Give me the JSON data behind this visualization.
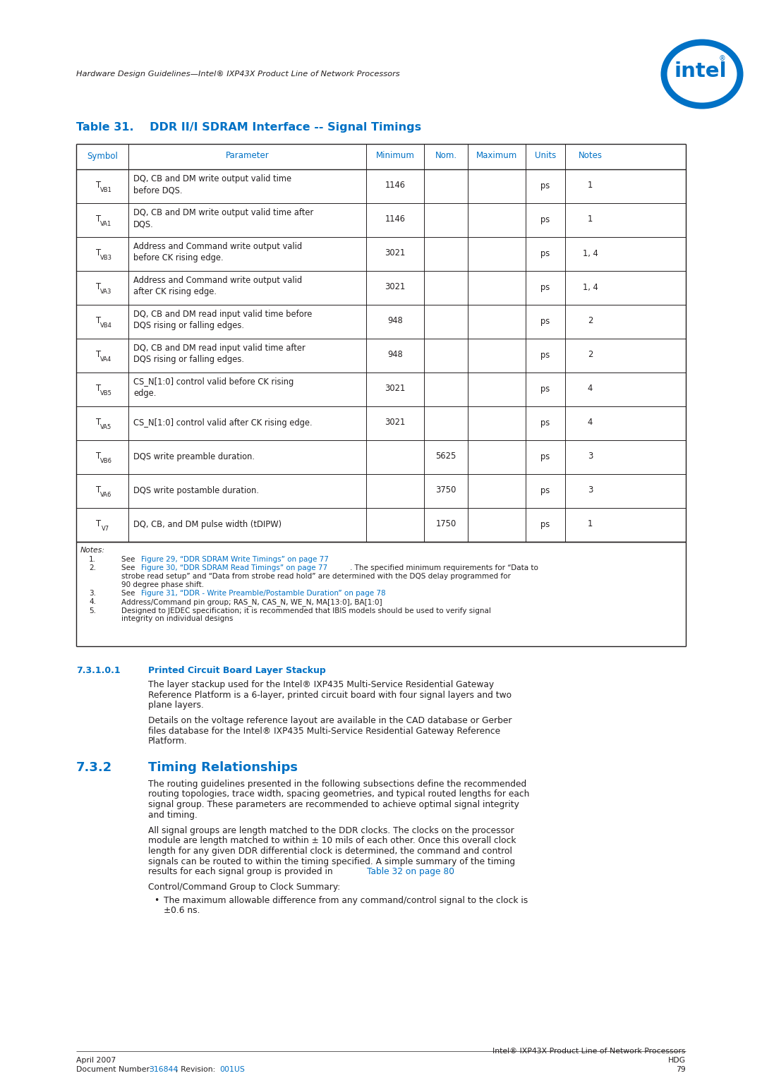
{
  "header_italic": "Hardware Design Guidelines—Intel® IXP43X Product Line of Network Processors",
  "table_title_num": "Table 31.",
  "table_title_text": "DDR II/I SDRAM Interface -- Signal Timings",
  "table_headers": [
    "Symbol",
    "Parameter",
    "Minimum",
    "Nom.",
    "Maximum",
    "Units",
    "Notes"
  ],
  "table_rows": [
    [
      "T",
      "VB1",
      "DQ, CB and DM write output valid time\nbefore DQS.",
      "1146",
      "",
      "",
      "ps",
      "1"
    ],
    [
      "T",
      "VA1",
      "DQ, CB and DM write output valid time after\nDQS.",
      "1146",
      "",
      "",
      "ps",
      "1"
    ],
    [
      "T",
      "VB3",
      "Address and Command write output valid\nbefore CK rising edge.",
      "3021",
      "",
      "",
      "ps",
      "1, 4"
    ],
    [
      "T",
      "VA3",
      "Address and Command write output valid\nafter CK rising edge.",
      "3021",
      "",
      "",
      "ps",
      "1, 4"
    ],
    [
      "T",
      "VB4",
      "DQ, CB and DM read input valid time before\nDQS rising or falling edges.",
      "948",
      "",
      "",
      "ps",
      "2"
    ],
    [
      "T",
      "VA4",
      "DQ, CB and DM read input valid time after\nDQS rising or falling edges.",
      "948",
      "",
      "",
      "ps",
      "2"
    ],
    [
      "T",
      "VB5",
      "CS_N[1:0] control valid before CK rising\nedge.",
      "3021",
      "",
      "",
      "ps",
      "4"
    ],
    [
      "T",
      "VA5",
      "CS_N[1:0] control valid after CK rising edge.",
      "3021",
      "",
      "",
      "ps",
      "4"
    ],
    [
      "T",
      "VB6",
      "DQS write preamble duration.",
      "",
      "5625",
      "",
      "ps",
      "3"
    ],
    [
      "T",
      "VA6",
      "DQS write postamble duration.",
      "",
      "3750",
      "",
      "ps",
      "3"
    ],
    [
      "T",
      "V7",
      "DQ, CB, and DM pulse width (tDIPW)",
      "",
      "1750",
      "",
      "ps",
      "1"
    ]
  ],
  "notes_title": "Notes:",
  "note1_blue": "Figure 29, “DDR SDRAM Write Timings” on page 77",
  "note2_blue": "Figure 30, “DDR SDRAM Read Timings” on page 77",
  "note2_black": ". The specified minimum requirements for “Data to strobe read setup” and “Data from strobe read hold” are determined with the DQS delay programmed for 90 degree phase shift.",
  "note3_blue": "Figure 31, “DDR - Write Preamble/Postamble Duration” on page 78",
  "note4": "Address/Command pin group; RAS_N, CAS_N, WE_N, MA[13:0], BA[1:0]",
  "note5": "Designed to JEDEC specification; it is recommended that IBIS models should be used to verify signal integrity on individual designs",
  "sec731_num": "7.3.1.0.1",
  "sec731_title": "Printed Circuit Board Layer Stackup",
  "sec731_body1_lines": [
    "The layer stackup used for the Intel® IXP435 Multi-Service Residential Gateway",
    "Reference Platform is a 6-layer, printed circuit board with four signal layers and two",
    "plane layers."
  ],
  "sec731_body2_lines": [
    "Details on the voltage reference layout are available in the CAD database or Gerber",
    "files database for the Intel® IXP435 Multi-Service Residential Gateway Reference",
    "Platform."
  ],
  "sec732_num": "7.3.2",
  "sec732_title": "Timing Relationships",
  "sec732_body1_lines": [
    "The routing guidelines presented in the following subsections define the recommended",
    "routing topologies, trace width, spacing geometries, and typical routed lengths for each",
    "signal group. These parameters are recommended to achieve optimal signal integrity",
    "and timing."
  ],
  "sec732_body2_lines": [
    "All signal groups are length matched to the DDR clocks. The clocks on the processor",
    "module are length matched to within ± 10 mils of each other. Once this overall clock",
    "length for any given DDR differential clock is determined, the command and control",
    "signals can be routed to within the timing specified. A simple summary of the timing"
  ],
  "sec732_body2_last_black": "results for each signal group is provided in ",
  "sec732_body2_last_blue": "Table 32 on page 80",
  "sec732_body2_last_end": ".",
  "sec732_body3": "Control/Command Group to Clock Summary:",
  "sec732_bullet_line1": "The maximum allowable difference from any command/control signal to the clock is",
  "sec732_bullet_line2": "±0.6 ns.",
  "footer_left1": "April 2007",
  "footer_left2_black1": "Document Number: ",
  "footer_left2_blue1": "316844",
  "footer_left2_black2": "; Revision: ",
  "footer_left2_blue2": "001US",
  "footer_right1": "Intel® IXP43X Product Line of Network Processors",
  "footer_right2": "HDG",
  "footer_right3": "79",
  "blue": "#0071C5",
  "black": "#231F20",
  "white": "#FFFFFF"
}
